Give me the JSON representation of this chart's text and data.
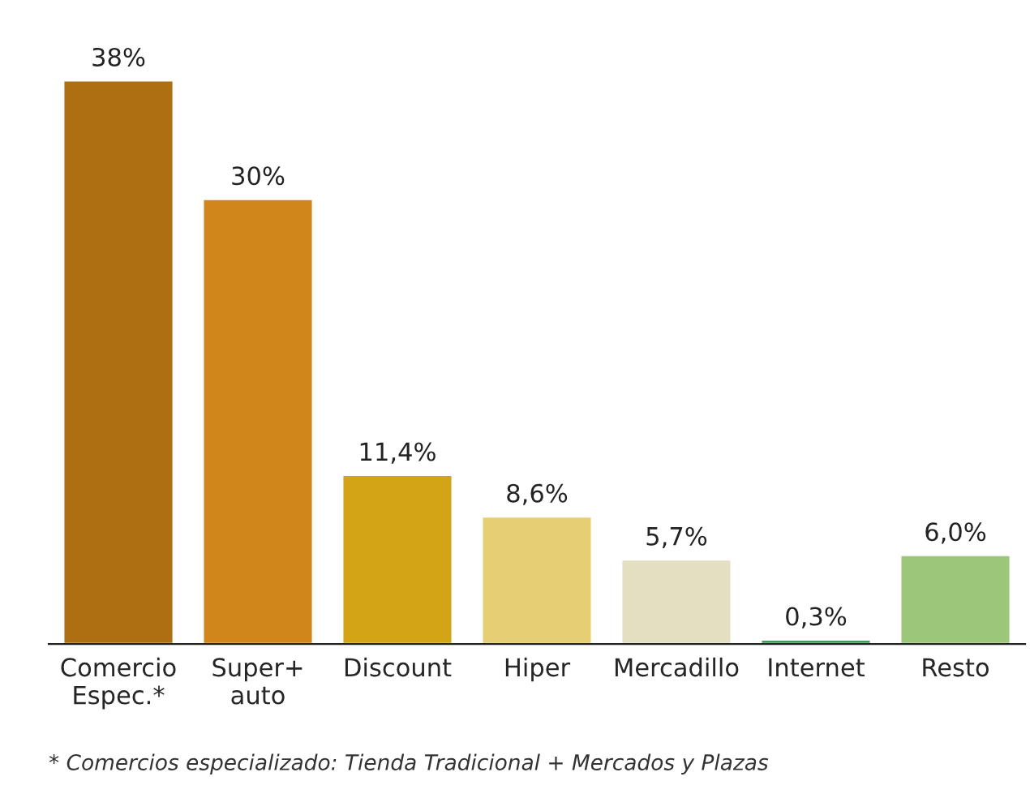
{
  "chart_data": {
    "type": "bar",
    "categories": [
      "Comercio\nEspec.*",
      "Super+\nauto",
      "Discount",
      "Hiper",
      "Mercadillo",
      "Internet",
      "Resto"
    ],
    "values": [
      38,
      30,
      11.4,
      8.6,
      5.7,
      0.3,
      6.0
    ],
    "colors": [
      "#ad6f12",
      "#d0861a",
      "#d3a416",
      "#e6cf73",
      "#e3e0c2",
      "#3e9b5c",
      "#9cc77a"
    ],
    "value_labels": [
      "38%",
      "30%",
      "11,4%",
      "8,6%",
      "5,7%",
      "0,3%",
      "6,0%"
    ],
    "annotations": [
      "* Comercios especializado: Tienda Tradicional + Mercados y Plazas"
    ]
  }
}
